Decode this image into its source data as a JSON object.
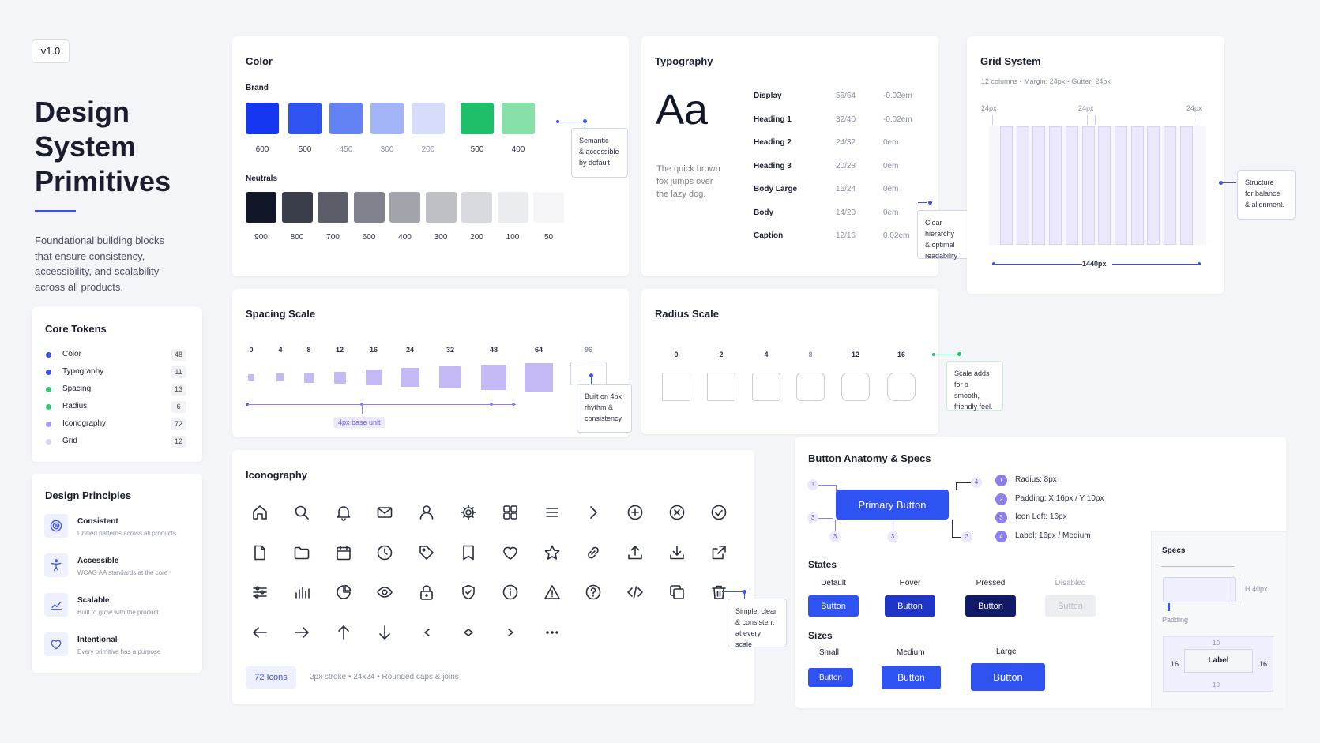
{
  "version": "v1.0",
  "hero": {
    "title_lines": [
      "Design",
      "System",
      "Primitives"
    ],
    "description_lines": [
      "Foundational building blocks",
      "that ensure consistency,",
      "accessibility, and scalability",
      "across all products."
    ]
  },
  "core_tokens": {
    "title": "Core Tokens",
    "items": [
      {
        "label": "Color",
        "count": "48",
        "color": "#3b52e8"
      },
      {
        "label": "Typography",
        "count": "11",
        "color": "#3b52e8"
      },
      {
        "label": "Spacing",
        "count": "13",
        "color": "#34c77b"
      },
      {
        "label": "Radius",
        "count": "6",
        "color": "#34c77b"
      },
      {
        "label": "Iconography",
        "count": "72",
        "color": "#a89af0"
      },
      {
        "label": "Grid",
        "count": "12",
        "color": "#d6d3f5"
      }
    ]
  },
  "principles": {
    "title": "Design Principles",
    "items": [
      {
        "title": "Consistent",
        "desc": "Unified patterns across all products",
        "icon": "target-icon"
      },
      {
        "title": "Accessible",
        "desc": "WCAG AA standards at the core",
        "icon": "accessibility-icon"
      },
      {
        "title": "Scalable",
        "desc": "Built to grow with the product",
        "icon": "chart-up-icon"
      },
      {
        "title": "Intentional",
        "desc": "Every primitive has a purpose",
        "icon": "heart-icon"
      }
    ]
  },
  "color": {
    "title": "Color",
    "brand_label": "Brand",
    "brand": [
      {
        "label": "600",
        "hex": "#1436f0"
      },
      {
        "label": "500",
        "hex": "#2f52f2"
      },
      {
        "label": "450",
        "hex": "#6383f5"
      },
      {
        "label": "300",
        "hex": "#a3b5f7"
      },
      {
        "label": "200",
        "hex": "#d5ddfb"
      },
      {
        "label": "500",
        "hex": "#1fbf6a"
      },
      {
        "label": "400",
        "hex": "#86e0a8"
      }
    ],
    "neutrals_label": "Neutrals",
    "neutrals": [
      {
        "label": "900",
        "hex": "#121629"
      },
      {
        "label": "800",
        "hex": "#3a3d4a"
      },
      {
        "label": "700",
        "hex": "#5b5e69"
      },
      {
        "label": "600",
        "hex": "#7f828c"
      },
      {
        "label": "400",
        "hex": "#a2a4ac"
      },
      {
        "label": "300",
        "hex": "#bfc0c6"
      },
      {
        "label": "200",
        "hex": "#d9dadf"
      },
      {
        "label": "100",
        "hex": "#ebecef"
      },
      {
        "label": "50",
        "hex": "#f5f5f7"
      }
    ],
    "callout_lines": [
      "Semantic",
      "& accessible",
      "by default"
    ]
  },
  "typography": {
    "title": "Typography",
    "sample": "Aa",
    "sample_text_lines": [
      "The quick brown",
      "fox jumps over",
      "the lazy dog."
    ],
    "rows": [
      {
        "name": "Display",
        "size": "56/64",
        "tracking": "-0.02em"
      },
      {
        "name": "Heading 1",
        "size": "32/40",
        "tracking": "-0.02em"
      },
      {
        "name": "Heading 2",
        "size": "24/32",
        "tracking": "0em"
      },
      {
        "name": "Heading 3",
        "size": "20/28",
        "tracking": "0em"
      },
      {
        "name": "Body Large",
        "size": "16/24",
        "tracking": "0em"
      },
      {
        "name": "Body",
        "size": "14/20",
        "tracking": "0em"
      },
      {
        "name": "Caption",
        "size": "12/16",
        "tracking": "0.02em"
      }
    ],
    "callout_lines": [
      "Clear hierarchy",
      "& optimal",
      "readability"
    ]
  },
  "grid": {
    "title": "Grid System",
    "subtitle": "12 columns • Margin: 24px • Gutter: 24px",
    "label_left": "24px",
    "label_mid": "24px",
    "label_right": "24px",
    "width_label": "1440px",
    "columns": 12,
    "callout_lines": [
      "Structure",
      "for balance",
      "& alignment."
    ]
  },
  "spacing": {
    "title": "Spacing Scale",
    "steps": [
      "0",
      "4",
      "8",
      "12",
      "16",
      "24",
      "32",
      "48",
      "64",
      "96"
    ],
    "base_label": "4px base unit",
    "callout_lines": [
      "Built on 4px",
      "rhythm &",
      "consistency"
    ]
  },
  "radius": {
    "title": "Radius Scale",
    "steps": [
      "0",
      "2",
      "4",
      "8",
      "12",
      "16"
    ],
    "callout_lines": [
      "Scale adds",
      "for a smooth,",
      "friendly feel."
    ]
  },
  "iconography": {
    "title": "Iconography",
    "count_badge": "72 Icons",
    "meta": "2px stroke • 24x24 • Rounded caps & joins",
    "callout_lines": [
      "Simple, clear",
      "& consistent",
      "at every scale"
    ]
  },
  "buttons": {
    "title": "Button Anatomy & Specs",
    "primary_label": "Primary Button",
    "markers": [
      "1",
      "4",
      "3",
      "3",
      "3",
      "3"
    ],
    "specs": [
      {
        "num": "1",
        "text": "Radius: 8px"
      },
      {
        "num": "2",
        "text": "Padding: X 16px / Y 10px"
      },
      {
        "num": "3",
        "text": "Icon Left: 16px"
      },
      {
        "num": "4",
        "text": "Label: 16px / Medium"
      }
    ],
    "states_title": "States",
    "states": [
      {
        "name": "Default",
        "label": "Button",
        "bg": "#2f52f2"
      },
      {
        "name": "Hover",
        "label": "Button",
        "bg": "#1f35c7"
      },
      {
        "name": "Pressed",
        "label": "Button",
        "bg": "#101a66"
      },
      {
        "name": "Disabled",
        "label": "Button",
        "bg": "#eceef2"
      }
    ],
    "sizes_title": "Sizes",
    "sizes": [
      {
        "name": "Small",
        "label": "Button"
      },
      {
        "name": "Medium",
        "label": "Button"
      },
      {
        "name": "Large",
        "label": "Button"
      }
    ],
    "spec_panel": {
      "title": "Specs",
      "height": "H 40px",
      "padding": "Padding",
      "pad_top": "10",
      "pad_left": "16",
      "pad_right": "16",
      "pad_bottom": "10",
      "label": "Label"
    }
  }
}
